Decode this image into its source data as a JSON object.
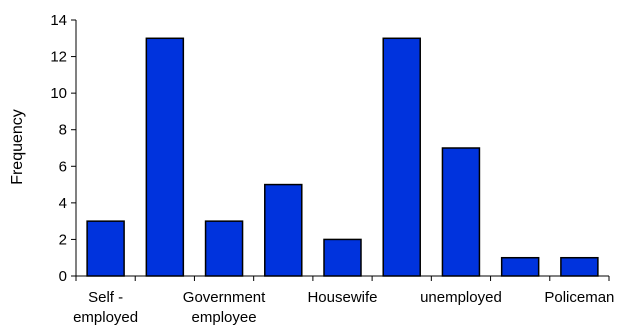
{
  "chart_data": {
    "type": "bar",
    "title": "",
    "xlabel": "",
    "ylabel": "Frequency",
    "ylim": [
      0,
      14
    ],
    "yticks": [
      0,
      2,
      4,
      6,
      8,
      10,
      12,
      14
    ],
    "grid": false,
    "legend": "none",
    "bar_color": "#0033dd",
    "bar_edge_color": "#000000",
    "values": [
      3,
      13,
      3,
      5,
      2,
      13,
      7,
      1,
      1
    ],
    "category_labels": [
      {
        "line1": "Self -",
        "line2": "employed"
      },
      {
        "line1": "Government",
        "line2": "employee"
      },
      {
        "line1": "Housewife",
        "line2": ""
      },
      {
        "line1": "unemployed",
        "line2": ""
      },
      {
        "line1": "Policeman",
        "line2": ""
      }
    ]
  }
}
